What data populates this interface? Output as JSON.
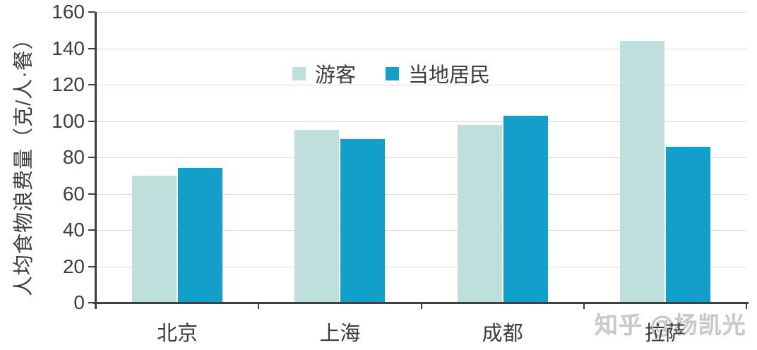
{
  "watermark": "知乎 @杨凯光",
  "colors": {
    "tourist_bar": "#bfdfdc",
    "resident_bar": "#129fc9",
    "gridline": "#d9d9d9",
    "axis": "#3f3f3f",
    "text": "#3d3d3d",
    "watermark_text": "#c6c6c6"
  },
  "chart_data": {
    "type": "bar",
    "categories": [
      "北京",
      "上海",
      "成都",
      "拉萨"
    ],
    "series": [
      {
        "name": "游客",
        "color": "#bfdfdc",
        "values": [
          70,
          95,
          98,
          144
        ]
      },
      {
        "name": "当地居民",
        "color": "#129fc9",
        "values": [
          74,
          90,
          103,
          86
        ]
      }
    ],
    "title": "",
    "xlabel": "",
    "ylabel": "人均食物浪费量（克/人·餐）",
    "ylim": [
      0,
      160
    ],
    "ytick_interval": 20,
    "grid": true,
    "legend_position": "top-center"
  }
}
